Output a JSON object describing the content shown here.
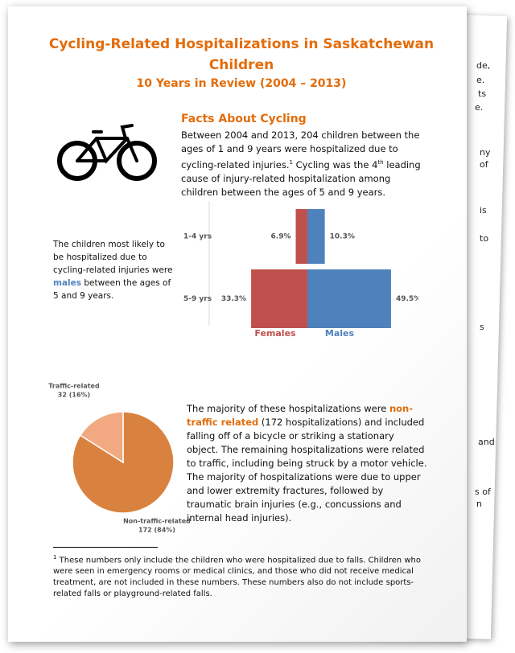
{
  "header": {
    "title": "Cycling-Related Hospitalizations in Saskatchewan Children",
    "subtitle": "10 Years in Review (2004 – 2013)"
  },
  "facts": {
    "heading": "Facts About Cycling",
    "paragraph": [
      "Between 2004 and 2013, 204 children between the ages of 1 and 9 years were hospitalized due to cycling-related injuries.",
      "1",
      " Cycling was the 4",
      "th",
      " leading cause of injury-related hospitalization among children between the ages of 5 and 9 years."
    ]
  },
  "side_note": [
    "The children most likely to be hospitalized due to cycling-related injuries were ",
    "males",
    " between the ages of 5 and 9 years."
  ],
  "chart_data": [
    {
      "type": "pyramid",
      "categories": [
        "1-4 yrs",
        "5-9 yrs"
      ],
      "series": [
        {
          "name": "Females",
          "color": "#c0504d",
          "values": [
            6.9,
            33.3
          ],
          "value_labels": [
            "6.9%",
            "33.3%"
          ]
        },
        {
          "name": "Males",
          "color": "#4f81bd",
          "values": [
            10.3,
            49.5
          ],
          "value_labels": [
            "10.3%",
            "49.5%"
          ]
        }
      ]
    },
    {
      "type": "pie",
      "categories": [
        "Traffic-related",
        "Non-traffic-related"
      ],
      "values": [
        16,
        84
      ],
      "value_labels": [
        "32 (16%)",
        "172 (84%)"
      ],
      "colors": [
        "#f2a982",
        "#d9823f"
      ]
    }
  ],
  "body": {
    "paragraph1": [
      "The majority of these hospitalizations were ",
      "non-traffic related",
      " (172 hospitalizations) and included falling off of a bicycle or striking a stationary object. The remaining hospitalizations were related to traffic, including being struck by a motor vehicle."
    ],
    "paragraph2": "The majority of hospitalizations were due to upper and lower extremity fractures, followed by traumatic brain injuries (e.g., concussions and internal head injuries)."
  },
  "footnote": [
    "1",
    " These numbers only include the children who were hospitalized due to falls. Children who were seen in emergency rooms or medical clinics, and those who did not receive medical treatment, are not included in these numbers. These numbers also do not include sports-related falls or playground-related falls."
  ],
  "back_page": [
    "de,",
    "e.",
    "ts",
    "e.",
    "ny",
    "of",
    "is",
    "to",
    "s",
    "and",
    "s of",
    "n"
  ]
}
